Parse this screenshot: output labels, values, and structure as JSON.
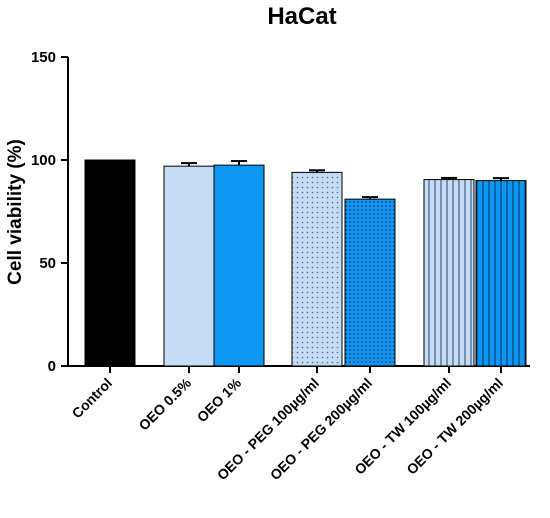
{
  "chart_data": {
    "type": "bar",
    "title": "HaCat",
    "xlabel": "",
    "ylabel": "Cell viability (%)",
    "ylim": [
      0,
      150
    ],
    "yticks": [
      0,
      50,
      100,
      150
    ],
    "grid": false,
    "legend": "none",
    "categories": [
      "Control",
      "OEO 0.5%",
      "OEO  1%",
      "OEO - PEG 100µg/ml",
      "OEO - PEG 200µg/ml",
      "OEO - TW 100µg/ml",
      "OEO - TW 200µg/ml"
    ],
    "values": [
      100,
      97,
      97.5,
      94,
      81,
      90.5,
      90
    ],
    "errors": [
      0,
      1.5,
      2,
      1,
      1,
      0.8,
      1.2
    ],
    "fills": [
      {
        "color": "#000000",
        "pattern": "solid"
      },
      {
        "color": "#c5dcf5",
        "pattern": "solid"
      },
      {
        "color": "#0d96f2",
        "pattern": "solid"
      },
      {
        "color": "#c5dcf5",
        "pattern": "dots"
      },
      {
        "color": "#0d96f2",
        "pattern": "dots"
      },
      {
        "color": "#c5dcf5",
        "pattern": "vlines"
      },
      {
        "color": "#0d96f2",
        "pattern": "vlines"
      }
    ]
  }
}
